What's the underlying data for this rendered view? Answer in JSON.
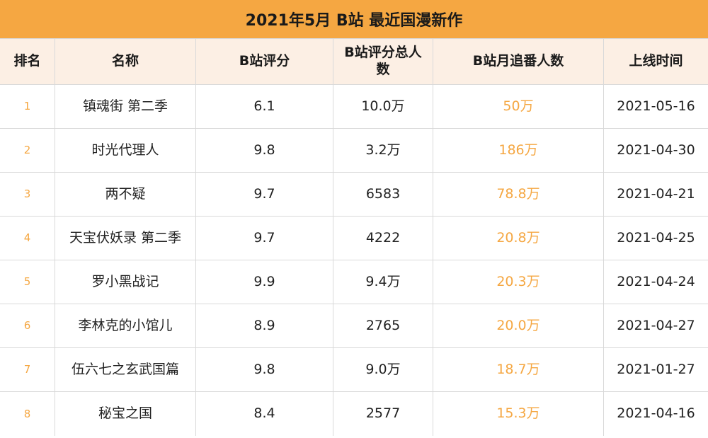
{
  "title": "2021年5月 B站 最近国漫新作",
  "colors": {
    "accent": "#f5a742",
    "header_bg": "#fcefe4",
    "border": "#d9d9d9"
  },
  "headers": {
    "rank": "排名",
    "name": "名称",
    "score": "B站评分",
    "raters": "B站评分总人数",
    "monthly_followers": "B站月追番人数",
    "release": "上线时间"
  },
  "rows": [
    {
      "rank": "1",
      "name": "镇魂街 第二季",
      "score": "6.1",
      "raters": "10.0万",
      "monthly_followers": "50万",
      "release": "2021-05-16"
    },
    {
      "rank": "2",
      "name": "时光代理人",
      "score": "9.8",
      "raters": "3.2万",
      "monthly_followers": "186万",
      "release": "2021-04-30"
    },
    {
      "rank": "3",
      "name": "两不疑",
      "score": "9.7",
      "raters": "6583",
      "monthly_followers": "78.8万",
      "release": "2021-04-21"
    },
    {
      "rank": "4",
      "name": "天宝伏妖录 第二季",
      "score": "9.7",
      "raters": "4222",
      "monthly_followers": "20.8万",
      "release": "2021-04-25"
    },
    {
      "rank": "5",
      "name": "罗小黑战记",
      "score": "9.9",
      "raters": "9.4万",
      "monthly_followers": "20.3万",
      "release": "2021-04-24"
    },
    {
      "rank": "6",
      "name": "李林克的小馆儿",
      "score": "8.9",
      "raters": "2765",
      "monthly_followers": "20.0万",
      "release": "2021-04-27"
    },
    {
      "rank": "7",
      "name": "伍六七之玄武国篇",
      "score": "9.8",
      "raters": "9.0万",
      "monthly_followers": "18.7万",
      "release": "2021-01-27"
    },
    {
      "rank": "8",
      "name": "秘宝之国",
      "score": "8.4",
      "raters": "2577",
      "monthly_followers": "15.3万",
      "release": "2021-04-16"
    }
  ]
}
